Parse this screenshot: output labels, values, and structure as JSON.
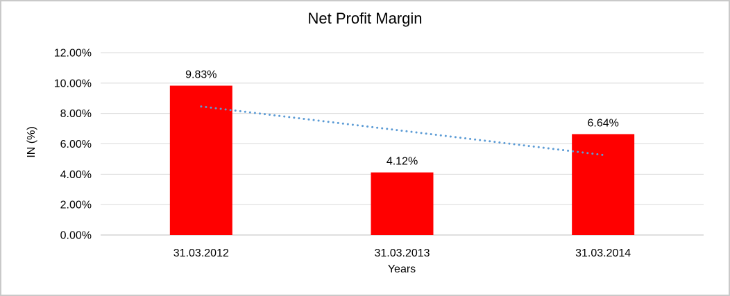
{
  "chart_data": {
    "type": "bar",
    "title": "Net Profit Margin",
    "xlabel": "Years",
    "ylabel": "IN (%)",
    "categories": [
      "31.03.2012",
      "31.03.2013",
      "31.03.2014"
    ],
    "values": [
      9.83,
      4.12,
      6.64
    ],
    "data_labels": [
      "9.83%",
      "4.12%",
      "6.64%"
    ],
    "ylim": [
      0,
      12
    ],
    "ytick_step": 2,
    "ytick_labels": [
      "0.00%",
      "2.00%",
      "4.00%",
      "6.00%",
      "8.00%",
      "10.00%",
      "12.00%"
    ],
    "grid": true,
    "legend": "none",
    "colors": {
      "bar": "#FF0000",
      "trendline": "#5B9BD5",
      "gridline": "#D9D9D9",
      "axis_line": "#BFBFBF",
      "text": "#000000",
      "frame_border": "#C9C9C9",
      "background": "#FFFFFF"
    },
    "trendline": {
      "type": "linear",
      "style": "dotted",
      "color": "#5B9BD5",
      "start_value": 8.46,
      "end_value": 5.27
    }
  }
}
